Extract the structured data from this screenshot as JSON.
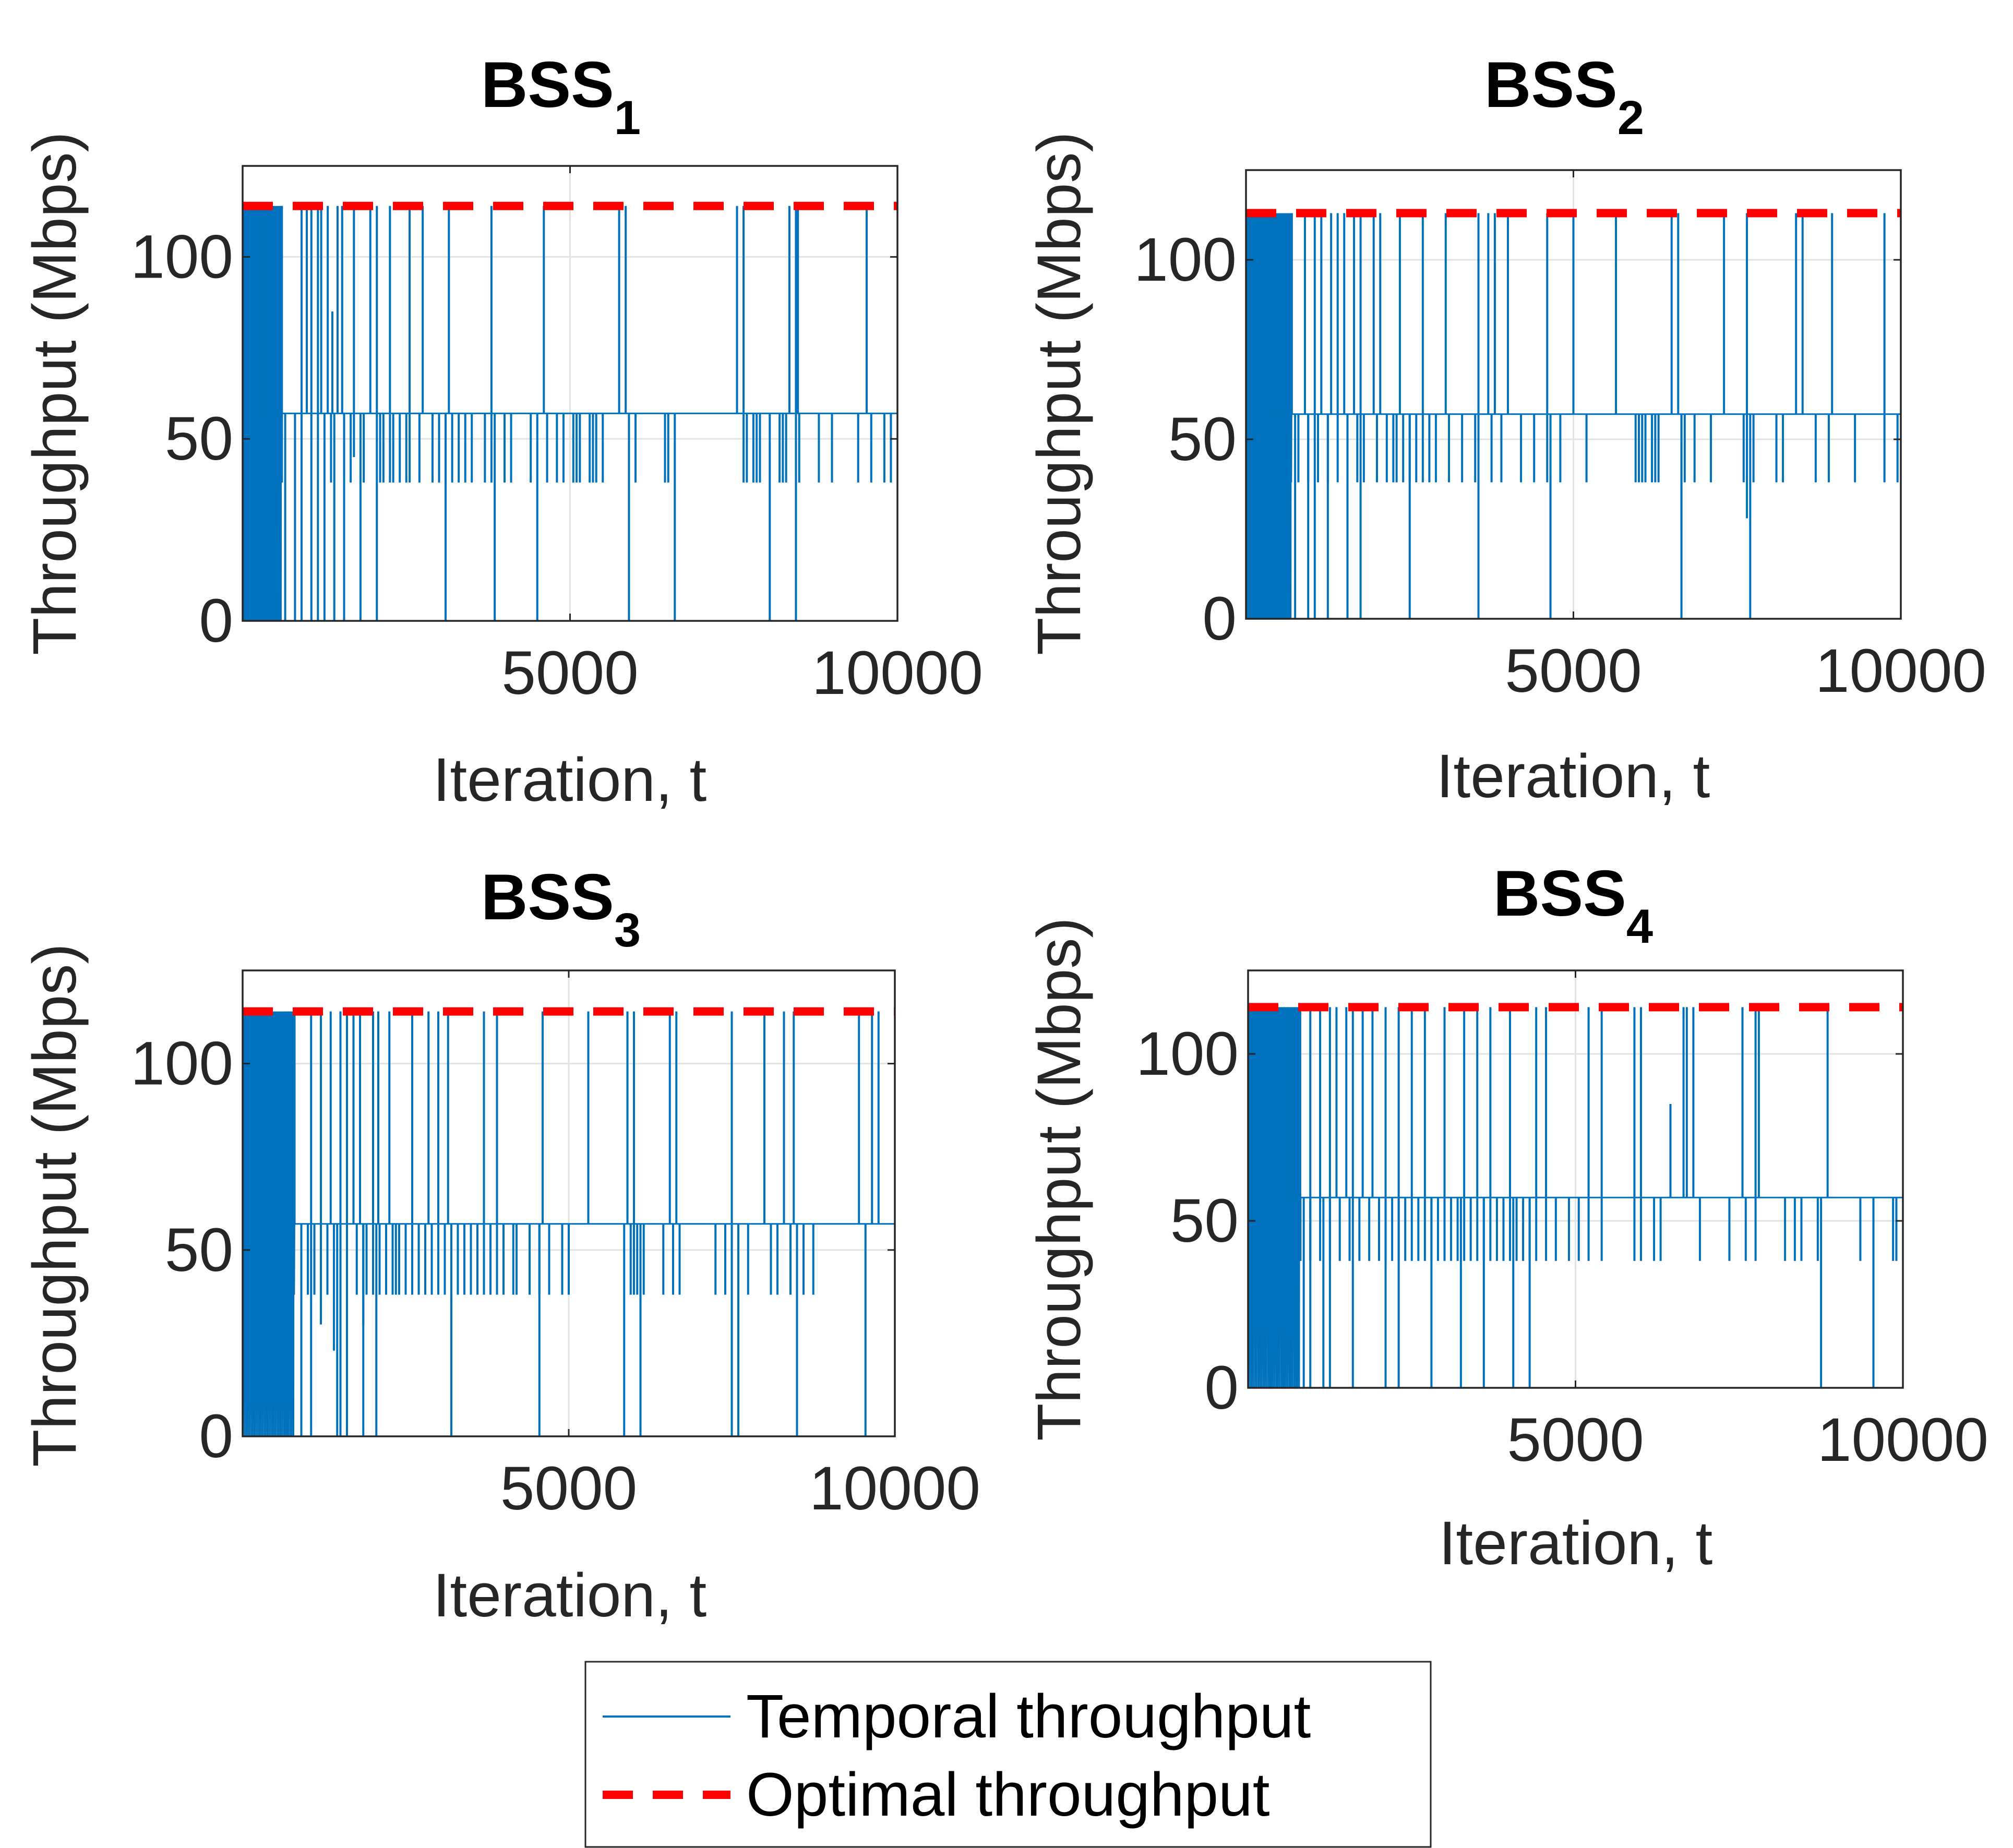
{
  "legend": {
    "placement": "bottom-center",
    "entries": [
      {
        "label": "Temporal throughput",
        "color": "#0072BD",
        "style": "solid"
      },
      {
        "label": "Optimal throughput",
        "color": "#FF0000",
        "style": "dashed"
      }
    ]
  },
  "chart_data": [
    {
      "type": "line",
      "title": {
        "main": "BSS",
        "sub": "1"
      },
      "xlabel": "Iteration, t",
      "ylabel": "Throughput (Mbps)",
      "xlim": [
        0,
        10000
      ],
      "ylim": [
        0,
        125
      ],
      "xticks": [
        5000,
        10000
      ],
      "yticks": [
        0,
        50,
        100
      ],
      "grid": true,
      "optimal": 114,
      "levels": [
        0,
        38,
        57,
        114
      ],
      "dense_until": 600,
      "spikes_up": [
        3,
        6,
        9,
        9.8,
        10.5,
        11.5,
        12,
        13,
        14.5,
        15.2,
        17,
        19.5,
        20.5,
        22.5,
        25.5,
        27.5,
        31.5,
        38,
        46,
        57.5,
        58.5,
        75.5,
        76.5,
        83.5,
        84.5,
        84.8,
        95.3
      ],
      "spikes_mid": [
        6,
        13.5,
        16.5,
        18.5,
        21,
        21.5,
        22.5,
        23,
        24,
        25,
        25.5,
        27,
        29,
        30,
        31,
        32,
        33,
        34,
        35,
        37,
        38,
        40,
        41,
        44,
        46.5,
        48,
        49,
        50.5,
        51,
        51.5,
        53,
        53.5,
        54,
        55,
        60,
        64.5,
        65,
        76.5,
        77,
        78,
        78.5,
        79,
        82,
        82.5,
        83,
        85,
        88,
        90,
        94,
        96,
        98,
        99
      ],
      "spikes_low": [
        5,
        5.5,
        6.5,
        8,
        9,
        10.5,
        11.5,
        12.5,
        14,
        15.5,
        18,
        20.5,
        31,
        38.5,
        45,
        59,
        66,
        80.5,
        84.5
      ],
      "partial_spikes": [
        {
          "x": 13.7,
          "y": 85
        },
        {
          "x": 17,
          "y": 45
        }
      ]
    },
    {
      "type": "line",
      "title": {
        "main": "BSS",
        "sub": "2"
      },
      "xlabel": "Iteration, t",
      "ylabel": "Throughput (Mbps)",
      "xlim": [
        0,
        10000
      ],
      "ylim": [
        0,
        125
      ],
      "xticks": [
        5000,
        10000
      ],
      "yticks": [
        0,
        50,
        100
      ],
      "grid": true,
      "optimal": 113,
      "levels": [
        0,
        38,
        57,
        113
      ],
      "dense_until": 700,
      "spikes_up": [
        4,
        7,
        9,
        10.5,
        11.5,
        13,
        14,
        15,
        16.5,
        17.5,
        19.5,
        20.5,
        23.5,
        27,
        30.5,
        35.5,
        37,
        38,
        40,
        46,
        50,
        56.5,
        65,
        66,
        73,
        76.5,
        84,
        85,
        89.5,
        97.5
      ],
      "spikes_mid": [
        5,
        8,
        9.5,
        11,
        12.5,
        14,
        15.5,
        17,
        18,
        20,
        21.5,
        22.5,
        23,
        24,
        25,
        26,
        27,
        28,
        29,
        31,
        33,
        35,
        37.5,
        39,
        42,
        44,
        46,
        48,
        52,
        59.5,
        60,
        60.5,
        61,
        62,
        62.5,
        63,
        67,
        68.5,
        71,
        76,
        77.5,
        81,
        82,
        87,
        89,
        93,
        97.5,
        99.5
      ],
      "spikes_low": [
        3.5,
        4.5,
        5.5,
        6.5,
        7.5,
        9.5,
        10.5,
        12.5,
        15.5,
        17.5,
        25,
        35.5,
        46.5,
        66.5,
        77
      ],
      "partial_spikes": [
        {
          "x": 66.5,
          "y": 25
        },
        {
          "x": 76.5,
          "y": 28
        }
      ]
    },
    {
      "type": "line",
      "title": {
        "main": "BSS",
        "sub": "3"
      },
      "xlabel": "Iteration, t",
      "ylabel": "Throughput (Mbps)",
      "xlim": [
        0,
        10000
      ],
      "ylim": [
        0,
        125
      ],
      "xticks": [
        5000,
        10000
      ],
      "yticks": [
        0,
        50,
        100
      ],
      "grid": true,
      "optimal": 114,
      "levels": [
        0,
        38,
        57,
        114
      ],
      "dense_until": 800,
      "spikes_up": [
        3,
        7,
        10.5,
        12,
        13.5,
        15,
        16,
        17,
        18,
        20,
        20.8,
        22.5,
        26,
        28.5,
        30,
        31.5,
        37,
        39,
        46,
        53,
        59,
        60,
        65.5,
        66.5,
        75,
        80,
        83,
        84.5,
        94.5,
        96.5,
        97.5
      ],
      "spikes_mid": [
        7,
        10,
        11,
        12,
        13,
        14,
        15,
        16,
        17.5,
        18.5,
        19,
        20,
        21,
        22,
        23,
        23.5,
        24,
        25,
        26,
        27,
        28,
        29,
        30,
        31,
        32,
        33,
        34,
        35,
        36,
        37,
        38,
        39,
        40,
        41.5,
        42,
        44,
        45.5,
        47,
        49,
        50,
        59.5,
        60,
        60.5,
        61,
        61.5,
        64.5,
        66,
        67,
        72.5,
        74,
        77.5,
        81,
        82,
        84,
        86,
        87.5
      ],
      "spikes_low": [
        6.5,
        7,
        9,
        10.5,
        14.5,
        15,
        16,
        18.5,
        20.5,
        32,
        45.5,
        58.5,
        61,
        75,
        76,
        85,
        95.5
      ],
      "partial_spikes": [
        {
          "x": 12,
          "y": 30
        },
        {
          "x": 15,
          "y": 23
        },
        {
          "x": 18.5,
          "y": 30
        },
        {
          "x": 14,
          "y": 23
        }
      ]
    },
    {
      "type": "line",
      "title": {
        "main": "BSS",
        "sub": "4"
      },
      "xlabel": "Iteration, t",
      "ylabel": "Throughput (Mbps)",
      "xlim": [
        0,
        10000
      ],
      "ylim": [
        0,
        125
      ],
      "xticks": [
        5000,
        10000
      ],
      "yticks": [
        0,
        50,
        100
      ],
      "grid": true,
      "optimal": 114,
      "levels": [
        0,
        38,
        57,
        114
      ],
      "dense_until": 800,
      "spikes_up": [
        3,
        6,
        9.5,
        11,
        12.5,
        13.5,
        15,
        16,
        17.5,
        19,
        21,
        23,
        25,
        27,
        30,
        33,
        35,
        37,
        40,
        44,
        45.5,
        52,
        54,
        59,
        60,
        66.5,
        67,
        68,
        75.5,
        77.5,
        78,
        88.5
      ],
      "spikes_mid": [
        8,
        9.5,
        11,
        12.5,
        14,
        15.5,
        17,
        18.5,
        20,
        21,
        22,
        23,
        24,
        25,
        26,
        27,
        28,
        29,
        30,
        31,
        32,
        33,
        34,
        35,
        36,
        37,
        38,
        39,
        40,
        41,
        42,
        43,
        44,
        45.5,
        47,
        49,
        50.5,
        52,
        54,
        59,
        60,
        62,
        63,
        69,
        73.5,
        76,
        77.5,
        82,
        83.5,
        84.5,
        87,
        93.5,
        95.5,
        98.5,
        99
      ],
      "spikes_low": [
        3.5,
        4.5,
        5.5,
        6.5,
        7.5,
        8.5,
        9.5,
        11.5,
        12.5,
        16,
        21,
        23,
        28,
        32.5,
        36,
        40.5,
        43,
        87.5,
        95.5
      ],
      "partial_spikes": [
        {
          "x": 64.5,
          "y": 85
        },
        {
          "x": 75.5,
          "y": 85
        }
      ]
    }
  ]
}
